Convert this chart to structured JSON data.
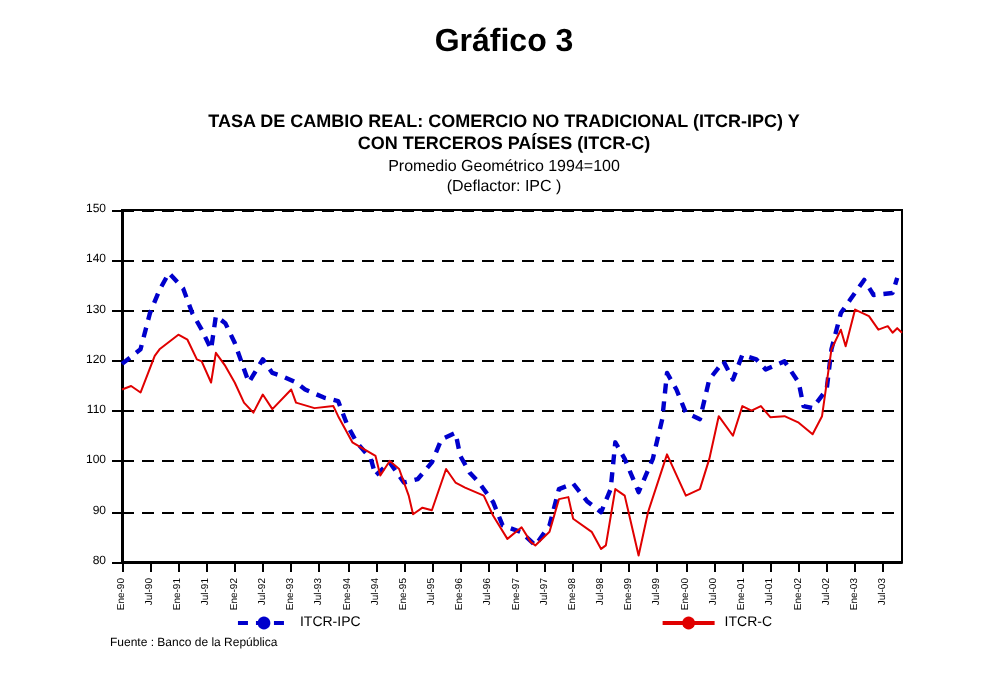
{
  "chart_data": {
    "type": "line",
    "title": "Gráfico 3",
    "subtitle": "TASA DE CAMBIO REAL: COMERCIO NO TRADICIONAL (ITCR-IPC) Y\nCON TERCEROS PAÍSES (ITCR-C)",
    "annotations": [
      "Promedio Geométrico 1994=100",
      "(Deflactor: IPC )",
      "Fuente : Banco de la República"
    ],
    "xlim": [
      "1990-01",
      "2003-11"
    ],
    "xticks": [
      {
        "value": "1990-01",
        "label": "Ene-90"
      },
      {
        "value": "1990-07",
        "label": "Jul-90"
      },
      {
        "value": "1991-01",
        "label": "Ene-91"
      },
      {
        "value": "1991-07",
        "label": "Jul-91"
      },
      {
        "value": "1992-01",
        "label": "Ene-92"
      },
      {
        "value": "1992-07",
        "label": "Jul-92"
      },
      {
        "value": "1993-01",
        "label": "Ene-93"
      },
      {
        "value": "1993-07",
        "label": "Jul-93"
      },
      {
        "value": "1994-01",
        "label": "Ene-94"
      },
      {
        "value": "1994-07",
        "label": "Jul-94"
      },
      {
        "value": "1995-01",
        "label": "Ene-95"
      },
      {
        "value": "1995-07",
        "label": "Jul-95"
      },
      {
        "value": "1996-01",
        "label": "Ene-96"
      },
      {
        "value": "1996-07",
        "label": "Jul-96"
      },
      {
        "value": "1997-01",
        "label": "Ene-97"
      },
      {
        "value": "1997-07",
        "label": "Jul-97"
      },
      {
        "value": "1998-01",
        "label": "Ene-98"
      },
      {
        "value": "1998-07",
        "label": "Jul-98"
      },
      {
        "value": "1999-01",
        "label": "Ene-99"
      },
      {
        "value": "1999-07",
        "label": "Jul-99"
      },
      {
        "value": "2000-01",
        "label": "Ene-00"
      },
      {
        "value": "2000-07",
        "label": "Jul-00"
      },
      {
        "value": "2001-01",
        "label": "Ene-01"
      },
      {
        "value": "2001-07",
        "label": "Jul-01"
      },
      {
        "value": "2002-01",
        "label": "Ene-02"
      },
      {
        "value": "2002-07",
        "label": "Jul-02"
      },
      {
        "value": "2003-01",
        "label": "Ene-03"
      },
      {
        "value": "2003-07",
        "label": "Jul-03"
      }
    ],
    "ylim": [
      80,
      150
    ],
    "yticks": [
      80,
      90,
      100,
      110,
      120,
      130,
      140,
      150
    ],
    "grid": "y",
    "legend": "bottom",
    "series": [
      {
        "name": "ITCR-IPC",
        "color": "#0000cc",
        "line_style": "dashed",
        "x": [
          "1990-01",
          "1990-05",
          "1990-07",
          "1990-09",
          "1990-11",
          "1991-02",
          "1991-04",
          "1991-06",
          "1991-08",
          "1991-09",
          "1991-11",
          "1992-01",
          "1992-04",
          "1992-07",
          "1992-09",
          "1992-11",
          "1993-02",
          "1993-04",
          "1993-08",
          "1993-11",
          "1994-01",
          "1994-03",
          "1994-06",
          "1994-07",
          "1994-10",
          "1995-01",
          "1995-04",
          "1995-07",
          "1995-09",
          "1995-12",
          "1996-01",
          "1996-03",
          "1996-05",
          "1996-08",
          "1996-10",
          "1997-02",
          "1997-05",
          "1997-08",
          "1997-10",
          "1998-01",
          "1998-04",
          "1998-07",
          "1998-09",
          "1998-10",
          "1998-12",
          "1999-03",
          "1999-06",
          "1999-08",
          "1999-09",
          "1999-11",
          "2000-01",
          "2000-04",
          "2000-06",
          "2000-09",
          "2000-11",
          "2001-01",
          "2001-04",
          "2001-06",
          "2001-10",
          "2002-01",
          "2002-02",
          "2002-04",
          "2002-07",
          "2002-08",
          "2002-10",
          "2002-12",
          "2003-03",
          "2003-05",
          "2003-09",
          "2003-10"
        ],
        "values": [
          119.4,
          122.3,
          129.5,
          134.1,
          137.5,
          134.4,
          129.5,
          126.2,
          122.3,
          128.9,
          127.5,
          123.6,
          115.7,
          120.3,
          117.6,
          117,
          115.7,
          114.3,
          112.7,
          112,
          107.1,
          103.8,
          100.5,
          97.2,
          99.8,
          95.8,
          96.5,
          99.8,
          104.4,
          105.7,
          101.1,
          97.8,
          95.8,
          91.9,
          87.3,
          85.9,
          83.3,
          87.3,
          94.5,
          95.6,
          92.1,
          89.9,
          94.5,
          103.8,
          100.5,
          93.9,
          100.5,
          108.4,
          117.6,
          114.3,
          109.7,
          108.4,
          116.3,
          119.9,
          116.3,
          121.2,
          120.3,
          118.3,
          119.9,
          115.7,
          111,
          110.6,
          114.3,
          122.3,
          129.5,
          132.2,
          136.1,
          133.1,
          133.5,
          136.5
        ]
      },
      {
        "name": "ITCR-C",
        "color": "#e00000",
        "line_style": "solid",
        "x": [
          "1990-01",
          "1990-03",
          "1990-05",
          "1990-08",
          "1990-09",
          "1991-01",
          "1991-03",
          "1991-05",
          "1991-06",
          "1991-08",
          "1991-09",
          "1991-11",
          "1992-01",
          "1992-03",
          "1992-05",
          "1992-07",
          "1992-09",
          "1993-01",
          "1993-02",
          "1993-06",
          "1993-10",
          "1993-11",
          "1994-02",
          "1994-07",
          "1994-08",
          "1994-10",
          "1994-12",
          "1995-02",
          "1995-03",
          "1995-05",
          "1995-07",
          "1995-10",
          "1995-12",
          "1996-02",
          "1996-06",
          "1996-08",
          "1996-11",
          "1997-02",
          "1997-04",
          "1997-05",
          "1997-08",
          "1997-10",
          "1997-12",
          "1998-01",
          "1998-05",
          "1998-07",
          "1998-08",
          "1998-10",
          "1998-12",
          "1999-03",
          "1999-05",
          "1999-09",
          "2000-01",
          "2000-04",
          "2000-06",
          "2000-08",
          "2000-11",
          "2001-01",
          "2001-03",
          "2001-05",
          "2001-07",
          "2001-10",
          "2002-01",
          "2002-04",
          "2002-06",
          "2002-08",
          "2002-10",
          "2002-11",
          "2003-01",
          "2003-04",
          "2003-06",
          "2003-08",
          "2003-09",
          "2003-10",
          "2003-11"
        ],
        "values": [
          114.3,
          115,
          113.7,
          121,
          122.3,
          125.2,
          124.2,
          120.3,
          119.9,
          115.7,
          121.6,
          119,
          115.7,
          111.7,
          109.7,
          113.3,
          110.4,
          114.3,
          111.7,
          110.6,
          111,
          109,
          103.8,
          101.1,
          97.2,
          100.1,
          98.5,
          93.2,
          89.5,
          90.8,
          90.3,
          98.5,
          95.8,
          94.8,
          93.2,
          89.2,
          84.6,
          86.9,
          84,
          83.3,
          86,
          92.5,
          92.9,
          88.6,
          86,
          82.6,
          83.3,
          94.5,
          93.2,
          81.3,
          89.9,
          101.4,
          93.2,
          94.5,
          100.5,
          109,
          105.1,
          111,
          110.1,
          111,
          108.8,
          109,
          107.7,
          105.4,
          109,
          122.3,
          126.2,
          122.9,
          130.2,
          128.9,
          126.2,
          126.9,
          125.6,
          126.5,
          125.6
        ]
      }
    ]
  }
}
